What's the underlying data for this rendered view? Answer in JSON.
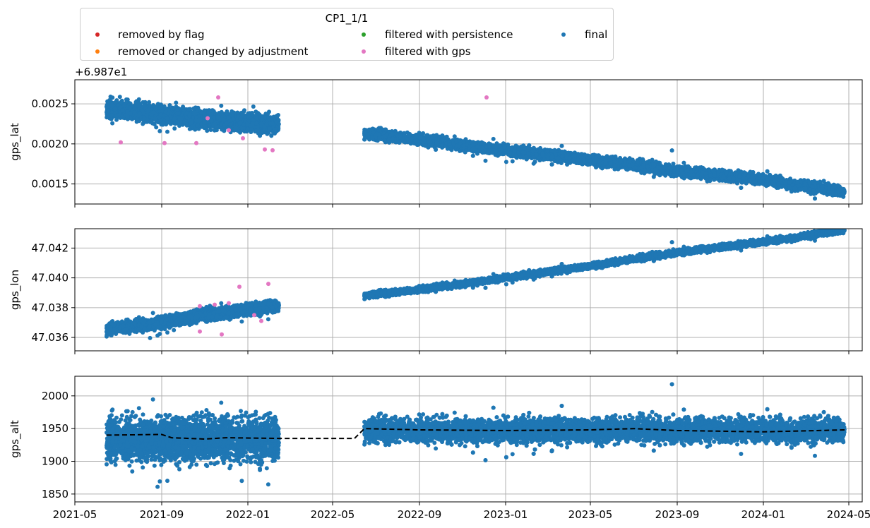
{
  "legend": {
    "title": "CP1_1/1",
    "items": [
      {
        "label": "removed by flag",
        "color": "#d62728"
      },
      {
        "label": "removed or changed by adjustment",
        "color": "#ff7f0e"
      },
      {
        "label": "filtered with persistence",
        "color": "#2ca02c"
      },
      {
        "label": "filtered with gps",
        "color": "#e377c2"
      },
      {
        "label": "final",
        "color": "#1f77b4"
      }
    ]
  },
  "chart_data": [
    {
      "type": "scatter",
      "ylabel": "gps_lat",
      "offset_label": "+6.987e1",
      "ylim": [
        0.00125,
        0.0028
      ],
      "yticks": [
        "0.0015",
        "0.0020",
        "0.0025"
      ],
      "ytick_values": [
        0.0015,
        0.002,
        0.0025
      ],
      "xlim": [
        "2021-05-01",
        "2024-05-20"
      ],
      "grid": true,
      "series": [
        {
          "name": "final",
          "color": "#1f77b4",
          "segments": [
            {
              "x": [
                "2021-06-15",
                "2021-09-01",
                "2021-11-01",
                "2022-02-14"
              ],
              "y": [
                0.00243,
                0.00237,
                0.0023,
                0.00224
              ],
              "spread": 0.0001
            },
            {
              "x": [
                "2022-06-15",
                "2022-09-01",
                "2023-01-01",
                "2023-05-01",
                "2023-09-01",
                "2024-01-01",
                "2024-04-25"
              ],
              "y": [
                0.00213,
                0.00205,
                0.00192,
                0.0018,
                0.00166,
                0.00155,
                0.0014
              ],
              "spread": 6e-05
            }
          ]
        },
        {
          "name": "filtered with gps",
          "color": "#e377c2",
          "points": [
            [
              "2021-07-05",
              0.00202
            ],
            [
              "2021-09-05",
              0.00201
            ],
            [
              "2021-10-20",
              0.00201
            ],
            [
              "2021-11-05",
              0.00232
            ],
            [
              "2021-11-20",
              0.00258
            ],
            [
              "2021-12-05",
              0.00217
            ],
            [
              "2021-12-25",
              0.00207
            ],
            [
              "2022-01-25",
              0.00193
            ],
            [
              "2022-02-05",
              0.00192
            ],
            [
              "2022-12-05",
              0.00258
            ]
          ]
        }
      ]
    },
    {
      "type": "scatter",
      "ylabel": "gps_lon",
      "offset_label": "",
      "ylim": [
        47.0351,
        47.0433
      ],
      "yticks": [
        "47.036",
        "47.038",
        "47.040",
        "47.042"
      ],
      "ytick_values": [
        47.036,
        47.038,
        47.04,
        47.042
      ],
      "xlim": [
        "2021-05-01",
        "2024-05-20"
      ],
      "grid": true,
      "series": [
        {
          "name": "final",
          "color": "#1f77b4",
          "segments": [
            {
              "x": [
                "2021-06-15",
                "2021-09-01",
                "2021-11-01",
                "2022-02-14"
              ],
              "y": [
                47.0365,
                47.037,
                47.0375,
                47.0381
              ],
              "spread": 0.00035
            },
            {
              "x": [
                "2022-06-15",
                "2022-09-01",
                "2023-01-01",
                "2023-05-01",
                "2023-09-01",
                "2024-01-01",
                "2024-04-25"
              ],
              "y": [
                47.0388,
                47.0392,
                47.04,
                47.0408,
                47.0417,
                47.0424,
                47.0432
              ],
              "spread": 0.00018
            }
          ]
        },
        {
          "name": "filtered with gps",
          "color": "#e377c2",
          "points": [
            [
              "2021-10-25",
              47.0381
            ],
            [
              "2021-10-25",
              47.0364
            ],
            [
              "2021-11-15",
              47.0382
            ],
            [
              "2021-12-05",
              47.0383
            ],
            [
              "2021-12-20",
              47.0394
            ],
            [
              "2022-01-10",
              47.0375
            ],
            [
              "2022-01-20",
              47.0371
            ],
            [
              "2022-01-30",
              47.0396
            ],
            [
              "2021-11-25",
              47.0362
            ]
          ]
        }
      ]
    },
    {
      "type": "scatter",
      "ylabel": "gps_alt",
      "offset_label": "",
      "ylim": [
        1838,
        2030
      ],
      "yticks": [
        "1850",
        "1900",
        "1950",
        "2000"
      ],
      "ytick_values": [
        1850,
        1900,
        1950,
        2000
      ],
      "xlim": [
        "2021-05-01",
        "2024-05-20"
      ],
      "xticks": [
        "2021-05",
        "2021-09",
        "2022-01",
        "2022-05",
        "2022-09",
        "2023-01",
        "2023-05",
        "2023-09",
        "2024-01",
        "2024-05"
      ],
      "grid": true,
      "series": [
        {
          "name": "final",
          "color": "#1f77b4",
          "segments": [
            {
              "x": [
                "2021-06-15",
                "2022-02-14"
              ],
              "y": [
                1933,
                1933
              ],
              "spread": 30
            },
            {
              "x": [
                "2022-06-15",
                "2024-04-25"
              ],
              "y": [
                1947,
                1947
              ],
              "spread": 17
            }
          ]
        },
        {
          "name": "rolling median",
          "color": "#000000",
          "line": {
            "x": [
              "2021-06-15",
              "2021-09-01",
              "2021-09-15",
              "2021-11-01",
              "2021-12-01",
              "2022-02-14",
              "2022-06-01",
              "2022-06-15",
              "2022-09-01",
              "2023-01-01",
              "2023-05-01",
              "2023-07-01",
              "2023-09-01",
              "2024-01-01",
              "2024-04-25"
            ],
            "y": [
              1940,
              1941,
              1936,
              1934,
              1936,
              1935,
              1935,
              1950,
              1948,
              1947,
              1948,
              1950,
              1947,
              1945,
              1948
            ]
          }
        }
      ]
    }
  ]
}
